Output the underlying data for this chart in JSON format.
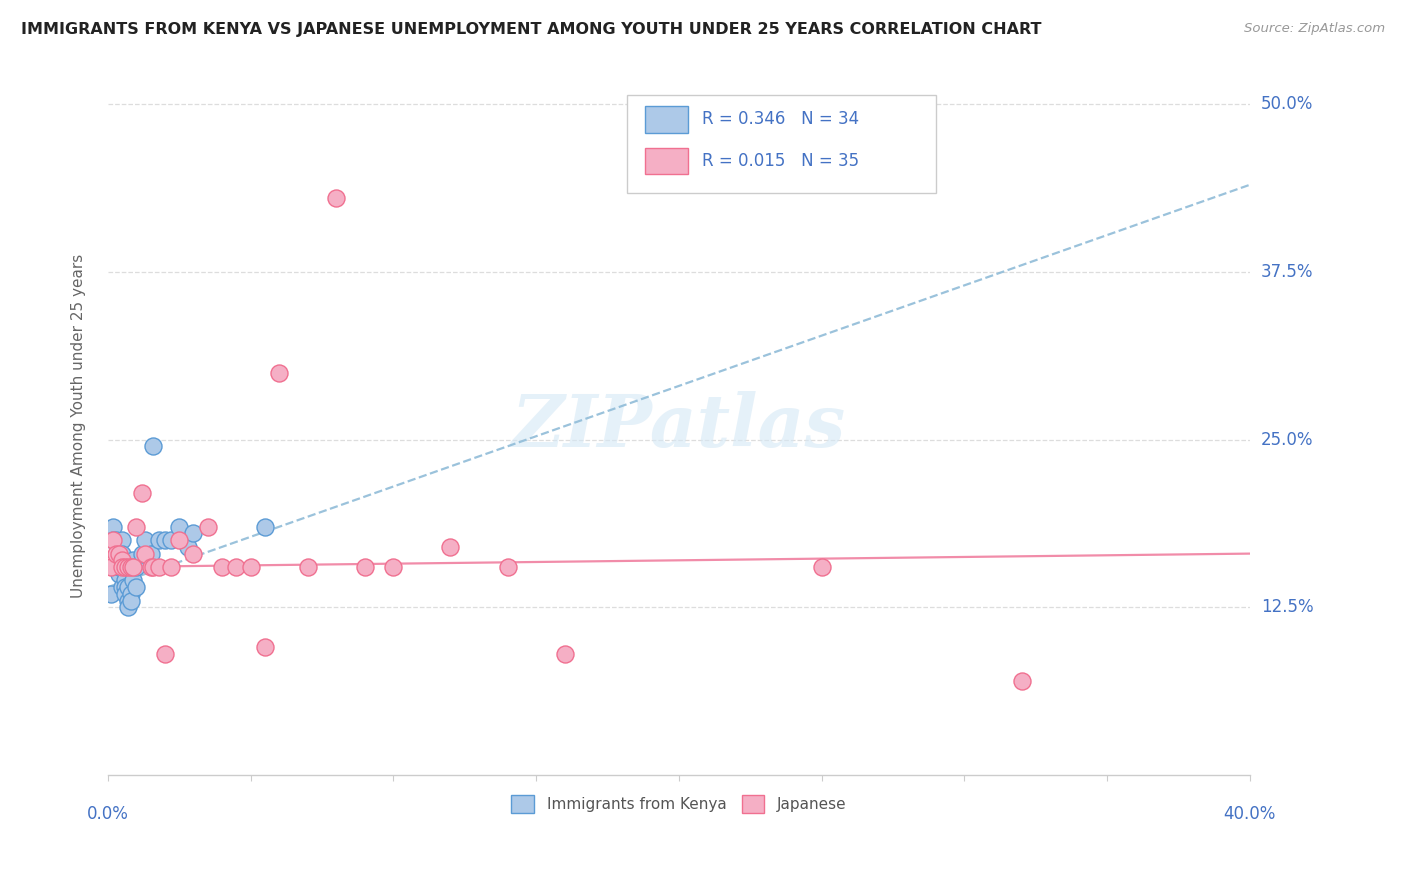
{
  "title": "IMMIGRANTS FROM KENYA VS JAPANESE UNEMPLOYMENT AMONG YOUTH UNDER 25 YEARS CORRELATION CHART",
  "source": "Source: ZipAtlas.com",
  "ylabel": "Unemployment Among Youth under 25 years",
  "ytick_labels": [
    "12.5%",
    "25.0%",
    "37.5%",
    "50.0%"
  ],
  "ytick_values": [
    0.125,
    0.25,
    0.375,
    0.5
  ],
  "legend_blue_text": "R = 0.346   N = 34",
  "legend_pink_text": "R = 0.015   N = 35",
  "legend_label_blue": "Immigrants from Kenya",
  "legend_label_pink": "Japanese",
  "blue_color": "#adc9e8",
  "pink_color": "#f5afc5",
  "blue_edge_color": "#5b9bd5",
  "pink_edge_color": "#f07090",
  "blue_line_color": "#90bcd8",
  "pink_line_color": "#f080a0",
  "watermark": "ZIPatlas",
  "blue_x": [
    0.001,
    0.002,
    0.002,
    0.003,
    0.003,
    0.004,
    0.004,
    0.004,
    0.005,
    0.005,
    0.005,
    0.006,
    0.006,
    0.006,
    0.007,
    0.007,
    0.007,
    0.008,
    0.008,
    0.009,
    0.009,
    0.01,
    0.01,
    0.012,
    0.013,
    0.015,
    0.016,
    0.018,
    0.02,
    0.022,
    0.025,
    0.028,
    0.03,
    0.055
  ],
  "blue_y": [
    0.135,
    0.185,
    0.175,
    0.175,
    0.155,
    0.155,
    0.15,
    0.155,
    0.175,
    0.165,
    0.14,
    0.145,
    0.14,
    0.135,
    0.13,
    0.14,
    0.125,
    0.135,
    0.13,
    0.145,
    0.16,
    0.155,
    0.14,
    0.165,
    0.175,
    0.165,
    0.245,
    0.175,
    0.175,
    0.175,
    0.185,
    0.17,
    0.18,
    0.185
  ],
  "pink_x": [
    0.001,
    0.002,
    0.003,
    0.004,
    0.005,
    0.005,
    0.006,
    0.007,
    0.008,
    0.009,
    0.01,
    0.012,
    0.013,
    0.015,
    0.016,
    0.018,
    0.02,
    0.022,
    0.025,
    0.03,
    0.035,
    0.04,
    0.045,
    0.05,
    0.055,
    0.06,
    0.07,
    0.08,
    0.09,
    0.1,
    0.12,
    0.14,
    0.16,
    0.25,
    0.32
  ],
  "pink_y": [
    0.155,
    0.175,
    0.165,
    0.165,
    0.16,
    0.155,
    0.155,
    0.155,
    0.155,
    0.155,
    0.185,
    0.21,
    0.165,
    0.155,
    0.155,
    0.155,
    0.09,
    0.155,
    0.175,
    0.165,
    0.185,
    0.155,
    0.155,
    0.155,
    0.095,
    0.3,
    0.155,
    0.43,
    0.155,
    0.155,
    0.17,
    0.155,
    0.09,
    0.155,
    0.07
  ],
  "xlim": [
    0.0,
    0.4
  ],
  "ylim": [
    0.0,
    0.52
  ],
  "background_color": "#ffffff",
  "grid_color": "#dddddd",
  "blue_trendline_x0": 0.0,
  "blue_trendline_x1": 0.4,
  "blue_trendline_y0": 0.14,
  "blue_trendline_y1": 0.44,
  "pink_trendline_x0": 0.0,
  "pink_trendline_x1": 0.4,
  "pink_trendline_y0": 0.155,
  "pink_trendline_y1": 0.165
}
